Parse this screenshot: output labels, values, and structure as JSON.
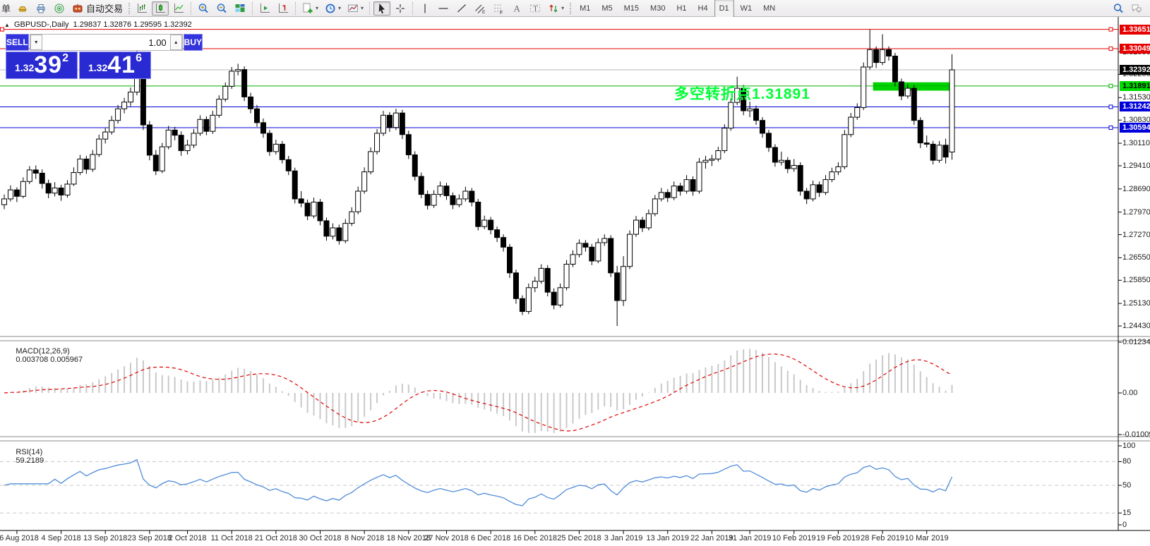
{
  "toolbar": {
    "new_order_label": "单",
    "autotrade_label": "自动交易",
    "icons": [
      "gold-ingot-icon",
      "printer-icon",
      "radar-icon",
      "robot-icon",
      "bar-chart-icon",
      "candlestick-icon",
      "line-chart-icon",
      "zoom-in-icon",
      "zoom-out-icon",
      "tile-windows-icon",
      "auto-scroll-icon",
      "chart-shift-icon",
      "indicators-icon",
      "periods-clock-icon",
      "templates-icon",
      "cursor-icon",
      "crosshair-icon",
      "vertical-line-icon",
      "horizontal-line-icon",
      "trendline-icon",
      "equidistant-channel-icon",
      "fibonacci-icon",
      "text-icon",
      "text-label-icon",
      "arrows-icon",
      "search-icon",
      "chat-icon"
    ],
    "timeframes": [
      "M1",
      "M5",
      "M15",
      "M30",
      "H1",
      "H4",
      "D1",
      "W1",
      "MN"
    ],
    "active_timeframe": "D1"
  },
  "chart": {
    "title_symbol": "GBPUSD-,Daily",
    "title_ohlc": "1.29837 1.32876 1.29595 1.32392",
    "macd_label": "MACD(12,26,9)",
    "macd_values": "0.003708 0.005967",
    "rsi_label": "RSI(14)",
    "rsi_value": "59.2189",
    "annotation_text": "多空转折点1.31891",
    "annotation_color": "#00ff35"
  },
  "order_panel": {
    "sell_label": "SELL",
    "buy_label": "BUY",
    "volume": "1.00",
    "sell_prefix": "1.32",
    "sell_big": "39",
    "sell_sup": "2",
    "buy_prefix": "1.32",
    "buy_big": "41",
    "buy_sup": "6"
  },
  "chart_data": {
    "type": "candlestick",
    "symbol": "GBPUSD-, Daily",
    "current_bar": {
      "open": 1.29837,
      "high": 1.32876,
      "low": 1.29595,
      "close": 1.32392
    },
    "current_price": 1.32392,
    "y_ticks": [
      "1.32950",
      "1.32250",
      "1.31530",
      "1.30830",
      "1.30110",
      "1.29410",
      "1.28690",
      "1.27970",
      "1.27270",
      "1.26550",
      "1.25850",
      "1.25130",
      "1.24430"
    ],
    "price_lines": [
      {
        "label": "1.33651",
        "price": 1.33651,
        "line": "#e60000",
        "bg": "#e60000",
        "fg": "#ffffff",
        "left_anchor": true
      },
      {
        "label": "1.33049",
        "price": 1.33049,
        "line": "#e60000",
        "bg": "#e60000",
        "fg": "#ffffff"
      },
      {
        "label": "1.31891",
        "price": 1.31891,
        "line": "#00b400",
        "bg": "#00dc00",
        "fg": "#000000"
      },
      {
        "label": "1.31242",
        "price": 1.31242,
        "line": "#0000dc",
        "bg": "#0000dc",
        "fg": "#ffffff"
      },
      {
        "label": "1.30594",
        "price": 1.30594,
        "line": "#0000dc",
        "bg": "#0000dc",
        "fg": "#ffffff"
      }
    ],
    "bid_label": {
      "label": "1.32392",
      "price": 1.32392,
      "line": "#b8b8b8",
      "bg": "#000000",
      "fg": "#ffffff"
    },
    "green_rect": {
      "from_bar": 137.5,
      "to_bar": 150.4,
      "price_top": 1.32005,
      "price_bottom": 1.31745,
      "color": "#00d200"
    },
    "x_tick_bars": [
      2,
      9,
      16,
      23,
      29,
      36,
      43,
      50,
      57,
      64,
      70,
      77,
      84,
      91,
      98,
      105,
      112,
      118,
      125,
      132,
      139,
      146
    ],
    "x_tick_labels": [
      "26 Aug 2018",
      "4 Sep 2018",
      "13 Sep 2018",
      "23 Sep 2018",
      "2 Oct 2018",
      "11 Oct 2018",
      "21 Oct 2018",
      "30 Oct 2018",
      "8 Nov 2018",
      "18 Nov 2018",
      "27 Nov 2018",
      "6 Dec 2018",
      "16 Dec 2018",
      "25 Dec 2018",
      "3 Jan 2019",
      "13 Jan 2019",
      "22 Jan 2019",
      "31 Jan 2019",
      "10 Feb 2019",
      "19 Feb 2019",
      "28 Feb 2019",
      "10 Mar 2019"
    ],
    "macd": {
      "params": [
        12,
        26,
        9
      ],
      "current_main": 0.003708,
      "current_signal": 0.005967,
      "scale_labels": [
        "0.012349",
        "0.00",
        "-0.010098"
      ],
      "scale_values": [
        0.012349,
        0,
        -0.010098
      ],
      "histogram_color": "#c9c9c9",
      "signal_color": "#e00000"
    },
    "rsi": {
      "period": 14,
      "current": 59.2189,
      "scale_labels": [
        "100",
        "80",
        "50",
        "15",
        "0"
      ],
      "scale_values": [
        100,
        80,
        50,
        15,
        0
      ],
      "level_lines": [
        80,
        50,
        15
      ],
      "line_color": "#4f8cd8"
    },
    "candles": [
      [
        1.282,
        1.2852,
        1.2806,
        1.2838
      ],
      [
        1.2838,
        1.288,
        1.283,
        1.2866
      ],
      [
        1.2866,
        1.2874,
        1.2828,
        1.2846
      ],
      [
        1.2846,
        1.2905,
        1.284,
        1.2892
      ],
      [
        1.2892,
        1.294,
        1.2884,
        1.2928
      ],
      [
        1.2928,
        1.2942,
        1.29,
        1.2918
      ],
      [
        1.2918,
        1.293,
        1.287,
        1.2886
      ],
      [
        1.2886,
        1.2898,
        1.284,
        1.2856
      ],
      [
        1.2856,
        1.289,
        1.2846,
        1.2872
      ],
      [
        1.2872,
        1.2882,
        1.2832,
        1.285
      ],
      [
        1.285,
        1.2896,
        1.2842,
        1.2884
      ],
      [
        1.2884,
        1.2936,
        1.2878,
        1.292
      ],
      [
        1.292,
        1.2975,
        1.2912,
        1.2962
      ],
      [
        1.2962,
        1.2972,
        1.2916,
        1.293
      ],
      [
        1.293,
        1.299,
        1.2922,
        1.2976
      ],
      [
        1.2976,
        1.3038,
        1.2968,
        1.3024
      ],
      [
        1.3024,
        1.3058,
        1.301,
        1.3046
      ],
      [
        1.3046,
        1.3096,
        1.3038,
        1.3082
      ],
      [
        1.3082,
        1.313,
        1.3072,
        1.3118
      ],
      [
        1.3118,
        1.3152,
        1.3104,
        1.3139
      ],
      [
        1.3139,
        1.3184,
        1.3126,
        1.317
      ],
      [
        1.317,
        1.3298,
        1.316,
        1.3262
      ],
      [
        1.3262,
        1.3272,
        1.3052,
        1.3068
      ],
      [
        1.3068,
        1.308,
        1.2958,
        1.2974
      ],
      [
        1.2974,
        1.299,
        1.2912,
        1.2925
      ],
      [
        1.2925,
        1.3012,
        1.2918,
        1.3
      ],
      [
        1.3,
        1.3065,
        1.2992,
        1.3052
      ],
      [
        1.3052,
        1.3062,
        1.302,
        1.3036
      ],
      [
        1.3036,
        1.3048,
        1.2972,
        1.2988
      ],
      [
        1.2988,
        1.3022,
        1.2976,
        1.3005
      ],
      [
        1.3005,
        1.3055,
        1.2996,
        1.3042
      ],
      [
        1.3042,
        1.3098,
        1.3034,
        1.3085
      ],
      [
        1.3085,
        1.3095,
        1.3036,
        1.3048
      ],
      [
        1.3048,
        1.3112,
        1.304,
        1.3098
      ],
      [
        1.3098,
        1.316,
        1.309,
        1.3148
      ],
      [
        1.3148,
        1.32,
        1.314,
        1.3188
      ],
      [
        1.3188,
        1.3248,
        1.318,
        1.3235
      ],
      [
        1.3235,
        1.3258,
        1.3222,
        1.324
      ],
      [
        1.324,
        1.325,
        1.3142,
        1.3155
      ],
      [
        1.3155,
        1.3168,
        1.3104,
        1.3118
      ],
      [
        1.3118,
        1.313,
        1.3062,
        1.3075
      ],
      [
        1.3075,
        1.3088,
        1.3028,
        1.3042
      ],
      [
        1.3042,
        1.3052,
        1.2972,
        1.2985
      ],
      [
        1.2985,
        1.3022,
        1.2976,
        1.3008
      ],
      [
        1.3008,
        1.3018,
        1.2948,
        1.296
      ],
      [
        1.296,
        1.2972,
        1.2912,
        1.2925
      ],
      [
        1.2925,
        1.2935,
        1.2824,
        1.2838
      ],
      [
        1.2838,
        1.2862,
        1.2812,
        1.2825
      ],
      [
        1.2825,
        1.2836,
        1.2772,
        1.2785
      ],
      [
        1.2785,
        1.2842,
        1.2778,
        1.2828
      ],
      [
        1.2828,
        1.2838,
        1.2756,
        1.277
      ],
      [
        1.277,
        1.278,
        1.2708,
        1.2722
      ],
      [
        1.2722,
        1.2762,
        1.2712,
        1.2748
      ],
      [
        1.2748,
        1.2758,
        1.2696,
        1.2708
      ],
      [
        1.2708,
        1.2775,
        1.27,
        1.2762
      ],
      [
        1.2762,
        1.2812,
        1.2754,
        1.2798
      ],
      [
        1.2798,
        1.2876,
        1.279,
        1.2862
      ],
      [
        1.2862,
        1.2936,
        1.2854,
        1.2922
      ],
      [
        1.2922,
        1.2998,
        1.2914,
        1.2985
      ],
      [
        1.2985,
        1.3055,
        1.2976,
        1.3042
      ],
      [
        1.3042,
        1.3112,
        1.3034,
        1.3098
      ],
      [
        1.3098,
        1.3108,
        1.3046,
        1.306
      ],
      [
        1.306,
        1.3118,
        1.3052,
        1.3105
      ],
      [
        1.3105,
        1.3115,
        1.3024,
        1.3038
      ],
      [
        1.3038,
        1.305,
        1.2962,
        1.2975
      ],
      [
        1.2975,
        1.2986,
        1.2895,
        1.2908
      ],
      [
        1.2908,
        1.292,
        1.284,
        1.2852
      ],
      [
        1.2852,
        1.2864,
        1.2805,
        1.2818
      ],
      [
        1.2818,
        1.2865,
        1.281,
        1.2852
      ],
      [
        1.2852,
        1.2892,
        1.2844,
        1.2878
      ],
      [
        1.2878,
        1.2888,
        1.2835,
        1.2848
      ],
      [
        1.2848,
        1.2858,
        1.2806,
        1.282
      ],
      [
        1.282,
        1.2852,
        1.2812,
        1.2838
      ],
      [
        1.2838,
        1.2876,
        1.283,
        1.2862
      ],
      [
        1.2862,
        1.2872,
        1.2815,
        1.2828
      ],
      [
        1.2828,
        1.2838,
        1.274,
        1.2752
      ],
      [
        1.2752,
        1.2786,
        1.2744,
        1.2772
      ],
      [
        1.2772,
        1.2782,
        1.2728,
        1.2742
      ],
      [
        1.2742,
        1.2752,
        1.2704,
        1.2718
      ],
      [
        1.2718,
        1.2728,
        1.2674,
        1.2688
      ],
      [
        1.2688,
        1.2698,
        1.2592,
        1.2608
      ],
      [
        1.2608,
        1.2618,
        1.2512,
        1.2528
      ],
      [
        1.2528,
        1.2538,
        1.2477,
        1.2488
      ],
      [
        1.2488,
        1.2575,
        1.248,
        1.2562
      ],
      [
        1.2562,
        1.2596,
        1.2548,
        1.2582
      ],
      [
        1.2582,
        1.2635,
        1.2574,
        1.2622
      ],
      [
        1.2622,
        1.2632,
        1.2535,
        1.2548
      ],
      [
        1.2548,
        1.256,
        1.2495,
        1.2508
      ],
      [
        1.2508,
        1.2575,
        1.25,
        1.2562
      ],
      [
        1.2562,
        1.2648,
        1.2554,
        1.2635
      ],
      [
        1.2635,
        1.2678,
        1.2626,
        1.2665
      ],
      [
        1.2665,
        1.2712,
        1.2656,
        1.27
      ],
      [
        1.27,
        1.271,
        1.2674,
        1.2688
      ],
      [
        1.2688,
        1.2698,
        1.2632,
        1.2645
      ],
      [
        1.2645,
        1.2715,
        1.2638,
        1.2702
      ],
      [
        1.2702,
        1.2728,
        1.2692,
        1.2715
      ],
      [
        1.2715,
        1.2725,
        1.2595,
        1.2608
      ],
      [
        1.2608,
        1.263,
        1.2443,
        1.2522
      ],
      [
        1.2522,
        1.266,
        1.2505,
        1.2628
      ],
      [
        1.2628,
        1.274,
        1.262,
        1.2728
      ],
      [
        1.2728,
        1.2785,
        1.272,
        1.2772
      ],
      [
        1.2772,
        1.2782,
        1.2735,
        1.2748
      ],
      [
        1.2748,
        1.2805,
        1.274,
        1.2792
      ],
      [
        1.2792,
        1.285,
        1.2784,
        1.2838
      ],
      [
        1.2838,
        1.2872,
        1.283,
        1.2858
      ],
      [
        1.2858,
        1.2868,
        1.2828,
        1.2842
      ],
      [
        1.2842,
        1.2892,
        1.2834,
        1.2878
      ],
      [
        1.2878,
        1.2888,
        1.2848,
        1.2862
      ],
      [
        1.2862,
        1.2912,
        1.2854,
        1.2898
      ],
      [
        1.2898,
        1.2908,
        1.2848,
        1.2862
      ],
      [
        1.2862,
        1.2965,
        1.2854,
        1.2952
      ],
      [
        1.2952,
        1.2972,
        1.2932,
        1.2958
      ],
      [
        1.2958,
        1.2975,
        1.294,
        1.2962
      ],
      [
        1.2962,
        1.3,
        1.2954,
        1.2988
      ],
      [
        1.2988,
        1.307,
        1.298,
        1.3058
      ],
      [
        1.3058,
        1.315,
        1.305,
        1.3138
      ],
      [
        1.3138,
        1.3218,
        1.313,
        1.3182
      ],
      [
        1.3182,
        1.3192,
        1.3098,
        1.3112
      ],
      [
        1.3112,
        1.314,
        1.3092,
        1.3118
      ],
      [
        1.3118,
        1.3128,
        1.3068,
        1.3082
      ],
      [
        1.3082,
        1.3092,
        1.3028,
        1.3042
      ],
      [
        1.3042,
        1.3052,
        1.2984,
        1.2998
      ],
      [
        1.2998,
        1.3008,
        1.2938,
        1.2952
      ],
      [
        1.2952,
        1.2985,
        1.2942,
        1.2958
      ],
      [
        1.2958,
        1.2968,
        1.2918,
        1.2932
      ],
      [
        1.2932,
        1.2962,
        1.2922,
        1.2942
      ],
      [
        1.2942,
        1.2952,
        1.2848,
        1.2862
      ],
      [
        1.2862,
        1.2872,
        1.2822,
        1.2838
      ],
      [
        1.2838,
        1.2895,
        1.283,
        1.2882
      ],
      [
        1.2882,
        1.2892,
        1.2844,
        1.2858
      ],
      [
        1.2858,
        1.2912,
        1.285,
        1.2898
      ],
      [
        1.2898,
        1.2935,
        1.289,
        1.2922
      ],
      [
        1.2922,
        1.2952,
        1.2912,
        1.2938
      ],
      [
        1.2938,
        1.3052,
        1.293,
        1.3038
      ],
      [
        1.3038,
        1.3105,
        1.303,
        1.3092
      ],
      [
        1.3092,
        1.3135,
        1.3084,
        1.3122
      ],
      [
        1.3122,
        1.3262,
        1.3114,
        1.3248
      ],
      [
        1.3248,
        1.3365,
        1.324,
        1.3302
      ],
      [
        1.3302,
        1.3312,
        1.3245,
        1.3262
      ],
      [
        1.3262,
        1.335,
        1.3254,
        1.3302
      ],
      [
        1.3302,
        1.3312,
        1.3268,
        1.3282
      ],
      [
        1.3282,
        1.3292,
        1.3188,
        1.3202
      ],
      [
        1.3202,
        1.3212,
        1.3145,
        1.3158
      ],
      [
        1.3158,
        1.3195,
        1.315,
        1.3182
      ],
      [
        1.3182,
        1.3192,
        1.3068,
        1.3082
      ],
      [
        1.3082,
        1.3092,
        1.2996,
        1.3012
      ],
      [
        1.3012,
        1.3035,
        1.2998,
        1.3008
      ],
      [
        1.3008,
        1.3018,
        1.2945,
        1.2958
      ],
      [
        1.2958,
        1.3018,
        1.295,
        1.3005
      ],
      [
        1.3005,
        1.3025,
        1.2948,
        1.2968
      ],
      [
        1.29837,
        1.32876,
        1.29595,
        1.32392
      ]
    ]
  }
}
